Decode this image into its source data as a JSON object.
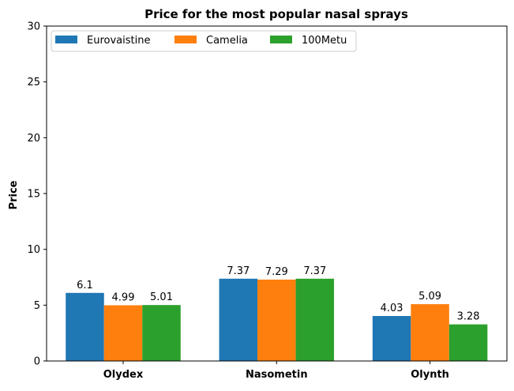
{
  "chart_data": {
    "type": "bar",
    "title": "Price for the most popular nasal sprays",
    "xlabel": "",
    "ylabel": "Price",
    "categories": [
      "Olydex",
      "Nasometin",
      "Olynth"
    ],
    "series": [
      {
        "name": "Eurovaistine",
        "color": "#1f77b4",
        "values": [
          6.1,
          7.37,
          4.03
        ],
        "labels": [
          "6.1",
          "7.37",
          "4.03"
        ]
      },
      {
        "name": "Camelia",
        "color": "#ff7f0e",
        "values": [
          4.99,
          7.29,
          5.09
        ],
        "labels": [
          "4.99",
          "7.29",
          "5.09"
        ]
      },
      {
        "name": "100Metu",
        "color": "#2ca02c",
        "values": [
          5.01,
          7.37,
          3.28
        ],
        "labels": [
          "5.01",
          "7.37",
          "3.28"
        ]
      }
    ],
    "ylim": [
      0,
      30
    ],
    "yticks": [
      "0",
      "5",
      "10",
      "15",
      "20",
      "25",
      "30"
    ],
    "grid": false,
    "legend_position": "top-left"
  }
}
